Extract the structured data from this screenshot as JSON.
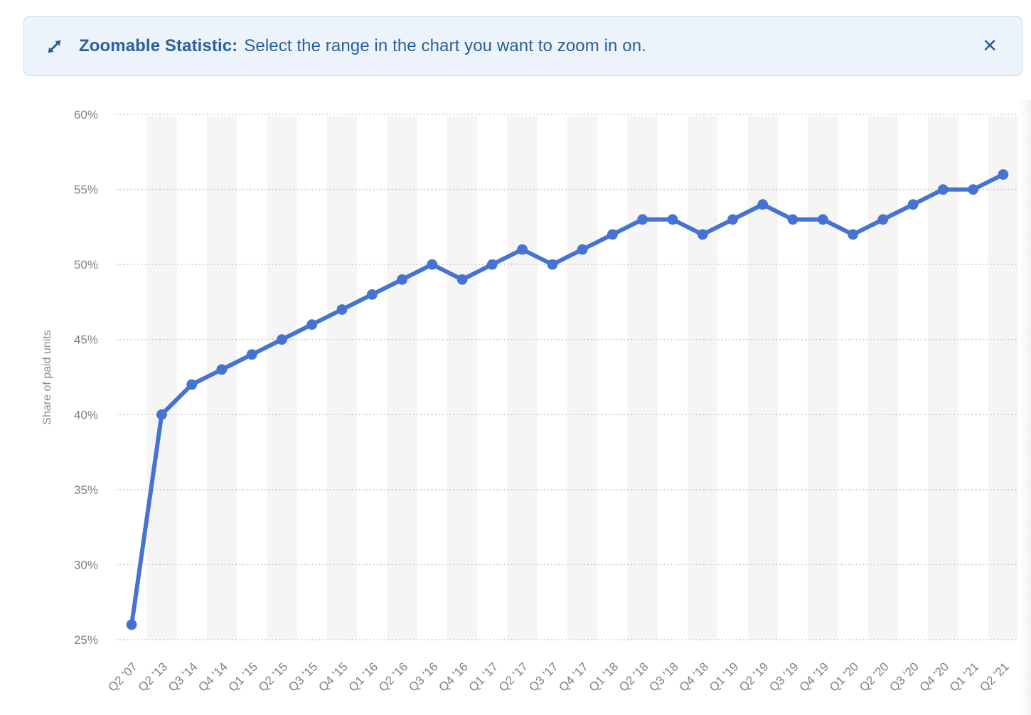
{
  "banner": {
    "icon": "zoom-expand-icon",
    "label_bold": "Zoomable Statistic:",
    "label_text": "Select the range in the chart you want to zoom in on.",
    "close_icon": "✕",
    "bg_color": "#edf3fa",
    "border_color": "#c8dcf0",
    "text_color": "#2b5f9e"
  },
  "chart_data": {
    "type": "line",
    "title": "",
    "xlabel": "",
    "ylabel": "Share of paid units",
    "unit": "%",
    "categories": [
      "Q2 '07",
      "Q2 '13",
      "Q3 '14",
      "Q4 '14",
      "Q1 '15",
      "Q2 '15",
      "Q3 '15",
      "Q4 '15",
      "Q1 '16",
      "Q2 '16",
      "Q3 '16",
      "Q4 '16",
      "Q1 '17",
      "Q2 '17",
      "Q3 '17",
      "Q4 '17",
      "Q1 '18",
      "Q2 '18",
      "Q3 '18",
      "Q4 '18",
      "Q1 '19",
      "Q2 '19",
      "Q3 '19",
      "Q4 '19",
      "Q1 '20",
      "Q2 '20",
      "Q3 '20",
      "Q4 '20",
      "Q1 '21",
      "Q2 '21"
    ],
    "values": [
      26,
      40,
      42,
      43,
      44,
      45,
      46,
      47,
      48,
      49,
      50,
      49,
      50,
      51,
      50,
      51,
      52,
      53,
      53,
      52,
      53,
      54,
      53,
      53,
      52,
      53,
      54,
      55,
      55,
      56
    ],
    "ylim": [
      25,
      60
    ],
    "ytick_step": 5,
    "ytick_labels": [
      "25%",
      "30%",
      "35%",
      "40%",
      "45%",
      "50%",
      "55%",
      "60%"
    ],
    "grid": "horizontal-dotted",
    "line_color": "#4673d2",
    "band_color": "#f5f5f6",
    "grid_color": "#c9c9c9",
    "tick_color": "#808080",
    "axis_title_color": "#8a8a8a"
  }
}
